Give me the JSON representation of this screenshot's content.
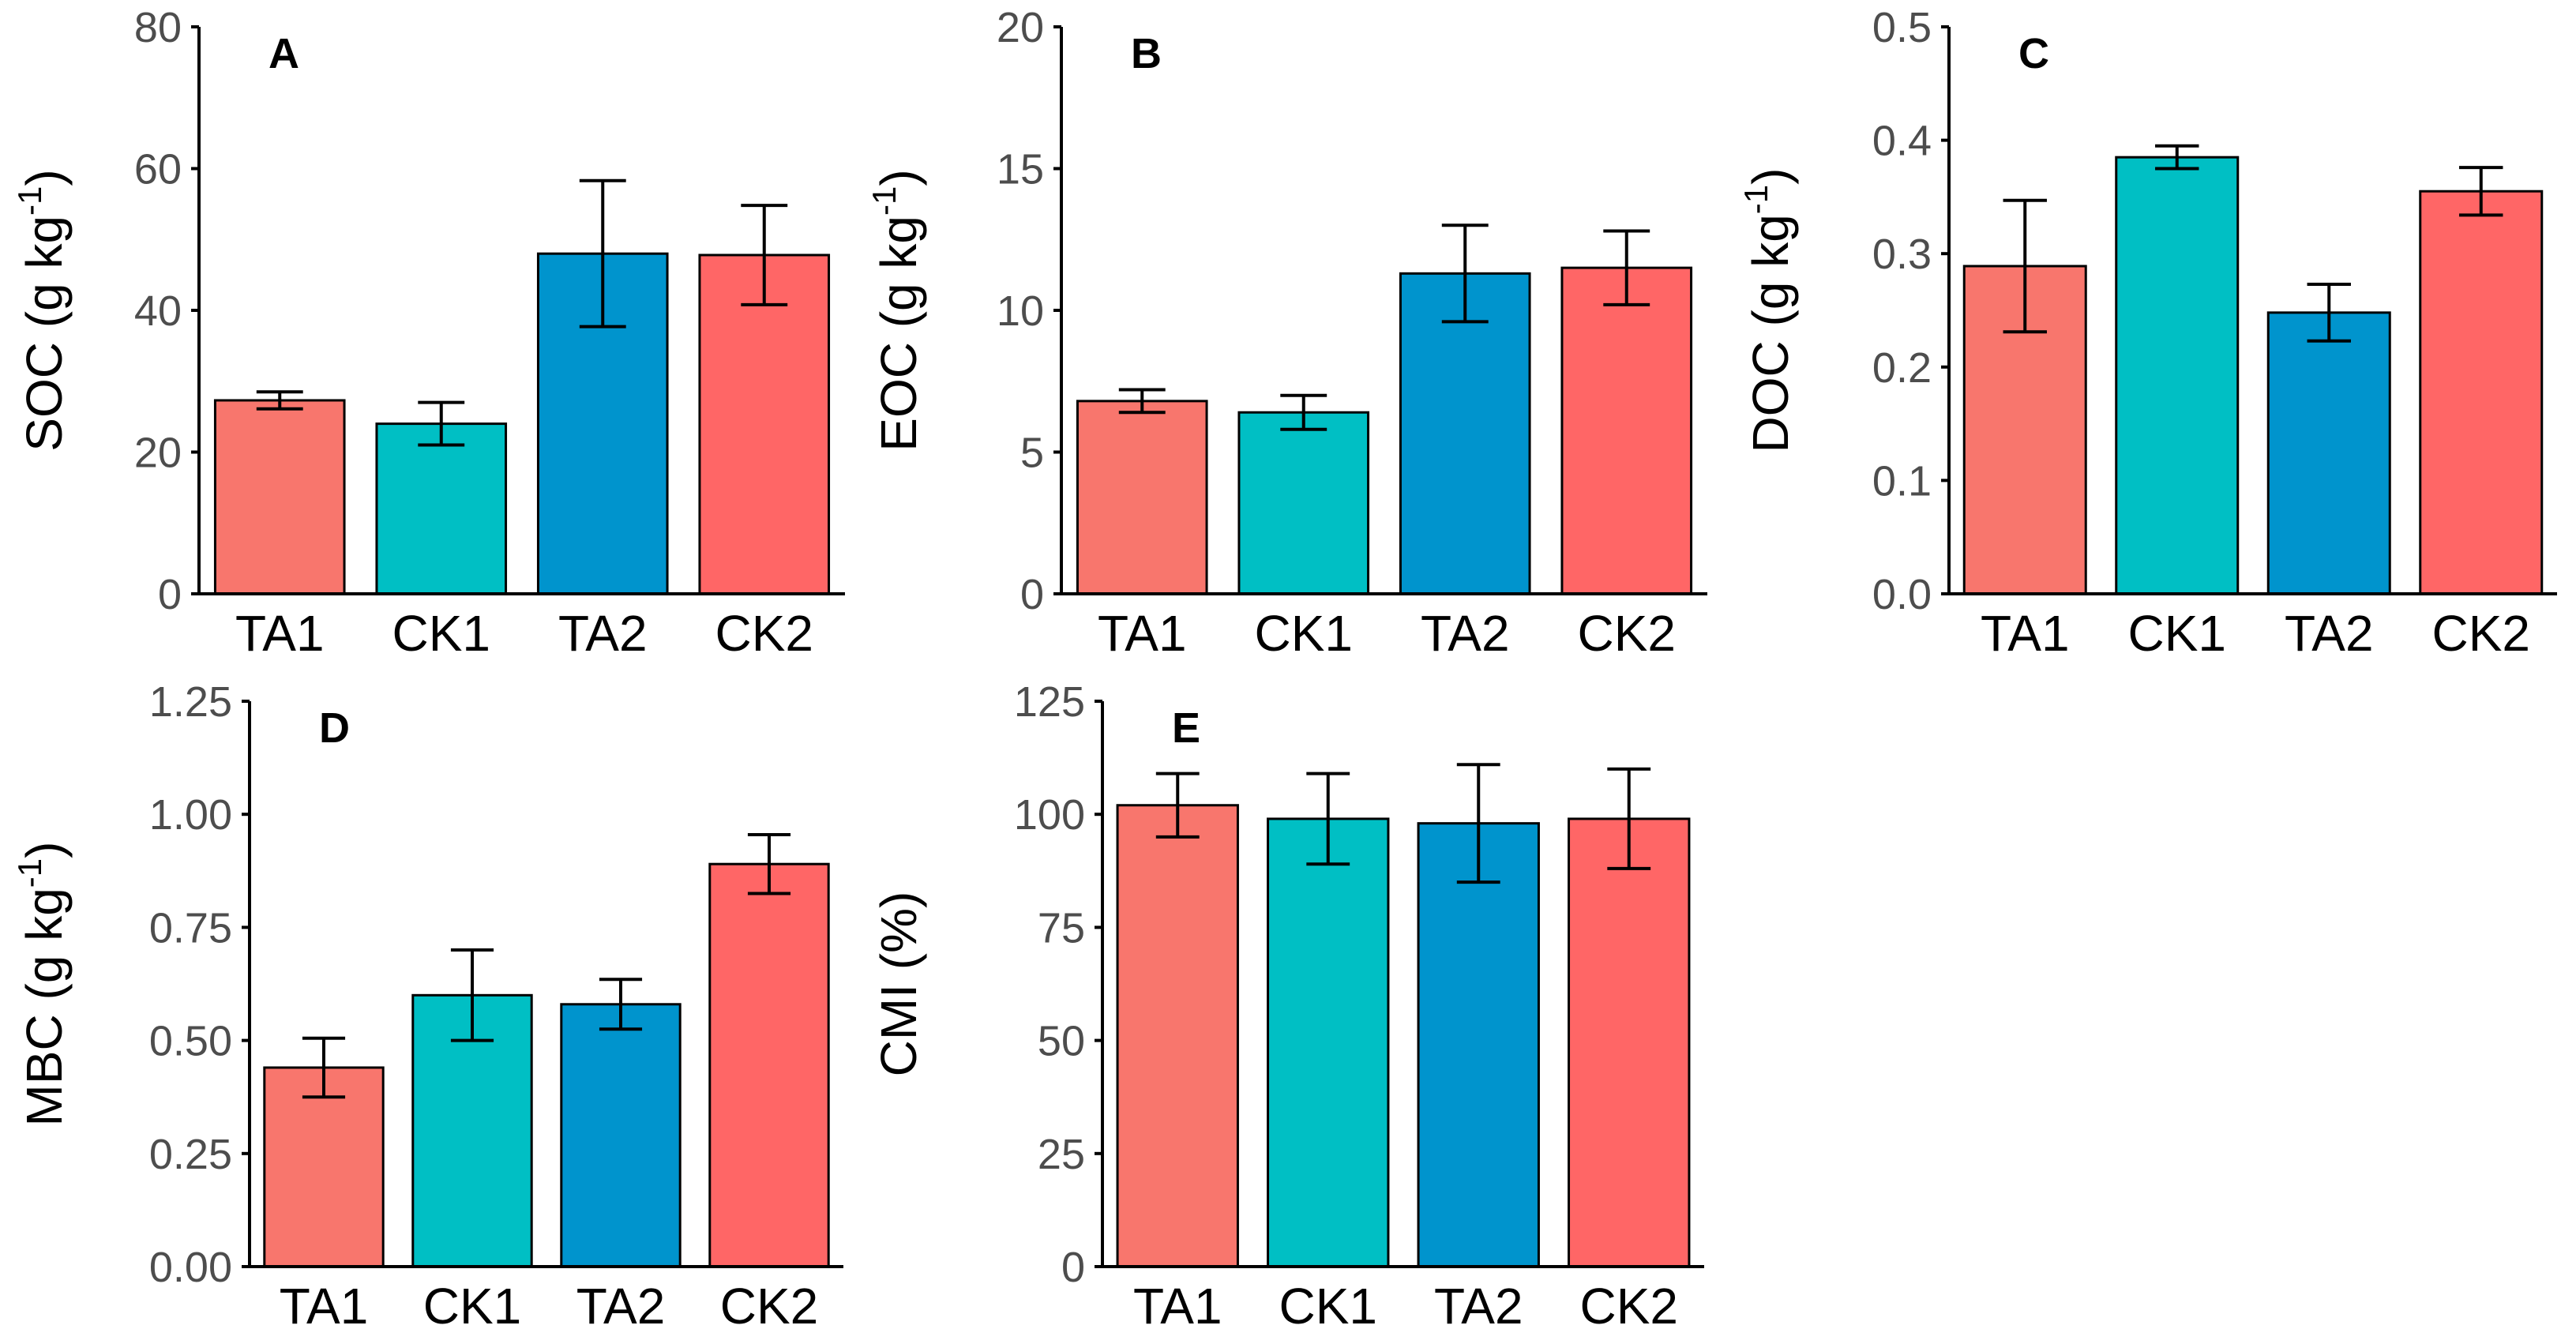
{
  "chart_data": [
    {
      "id": "A",
      "type": "bar",
      "panel_label": "A",
      "ylabel_main": "SOC (g kg",
      "ylabel_sup": "-1",
      "ylabel_end": ")",
      "categories": [
        "TA1",
        "CK1",
        "TA2",
        "CK2"
      ],
      "values": [
        27.3,
        24.0,
        48.0,
        47.8
      ],
      "errors": [
        1.2,
        3.0,
        10.3,
        7.0
      ],
      "colors": [
        "#F8766D",
        "#00BFC4",
        "#0094CD",
        "#FF6666"
      ],
      "ylim": [
        0,
        80
      ],
      "ticks": [
        0,
        20,
        40,
        60,
        80
      ],
      "tick_labels": [
        "0",
        "20",
        "40",
        "60",
        "80"
      ]
    },
    {
      "id": "B",
      "type": "bar",
      "panel_label": "B",
      "ylabel_main": "EOC (g kg",
      "ylabel_sup": "-1",
      "ylabel_end": ")",
      "categories": [
        "TA1",
        "CK1",
        "TA2",
        "CK2"
      ],
      "values": [
        6.8,
        6.4,
        11.3,
        11.5
      ],
      "errors": [
        0.4,
        0.6,
        1.7,
        1.3
      ],
      "colors": [
        "#F8766D",
        "#00BFC4",
        "#0094CD",
        "#FF6666"
      ],
      "ylim": [
        0,
        20
      ],
      "ticks": [
        0,
        5,
        10,
        15,
        20
      ],
      "tick_labels": [
        "0",
        "5",
        "10",
        "15",
        "20"
      ]
    },
    {
      "id": "C",
      "type": "bar",
      "panel_label": "C",
      "ylabel_main": "DOC (g kg",
      "ylabel_sup": "-1",
      "ylabel_end": ")",
      "categories": [
        "TA1",
        "CK1",
        "TA2",
        "CK2"
      ],
      "values": [
        0.289,
        0.385,
        0.248,
        0.355
      ],
      "errors": [
        0.058,
        0.01,
        0.025,
        0.021
      ],
      "colors": [
        "#F8766D",
        "#00BFC4",
        "#0094CD",
        "#FF6666"
      ],
      "ylim": [
        0,
        0.5
      ],
      "ticks": [
        0,
        0.1,
        0.2,
        0.3,
        0.4,
        0.5
      ],
      "tick_labels": [
        "0.0",
        "0.1",
        "0.2",
        "0.3",
        "0.4",
        "0.5"
      ]
    },
    {
      "id": "D",
      "type": "bar",
      "panel_label": "D",
      "ylabel_main": "MBC (g kg",
      "ylabel_sup": "-1",
      "ylabel_end": ")",
      "categories": [
        "TA1",
        "CK1",
        "TA2",
        "CK2"
      ],
      "values": [
        0.44,
        0.6,
        0.58,
        0.89
      ],
      "errors": [
        0.065,
        0.1,
        0.055,
        0.065
      ],
      "colors": [
        "#F8766D",
        "#00BFC4",
        "#0094CD",
        "#FF6666"
      ],
      "ylim": [
        0,
        1.25
      ],
      "ticks": [
        0,
        0.25,
        0.5,
        0.75,
        1.0,
        1.25
      ],
      "tick_labels": [
        "0.00",
        "0.25",
        "0.50",
        "0.75",
        "1.00",
        "1.25"
      ]
    },
    {
      "id": "E",
      "type": "bar",
      "panel_label": "E",
      "ylabel_main": "CMI (%)",
      "ylabel_sup": "",
      "ylabel_end": "",
      "categories": [
        "TA1",
        "CK1",
        "TA2",
        "CK2"
      ],
      "values": [
        102,
        99,
        98,
        99
      ],
      "errors": [
        7,
        10,
        13,
        11
      ],
      "colors": [
        "#F8766D",
        "#00BFC4",
        "#0094CD",
        "#FF6666"
      ],
      "ylim": [
        0,
        125
      ],
      "ticks": [
        0,
        25,
        50,
        75,
        100,
        125
      ],
      "tick_labels": [
        "0",
        "25",
        "50",
        "75",
        "100",
        "125"
      ]
    }
  ]
}
